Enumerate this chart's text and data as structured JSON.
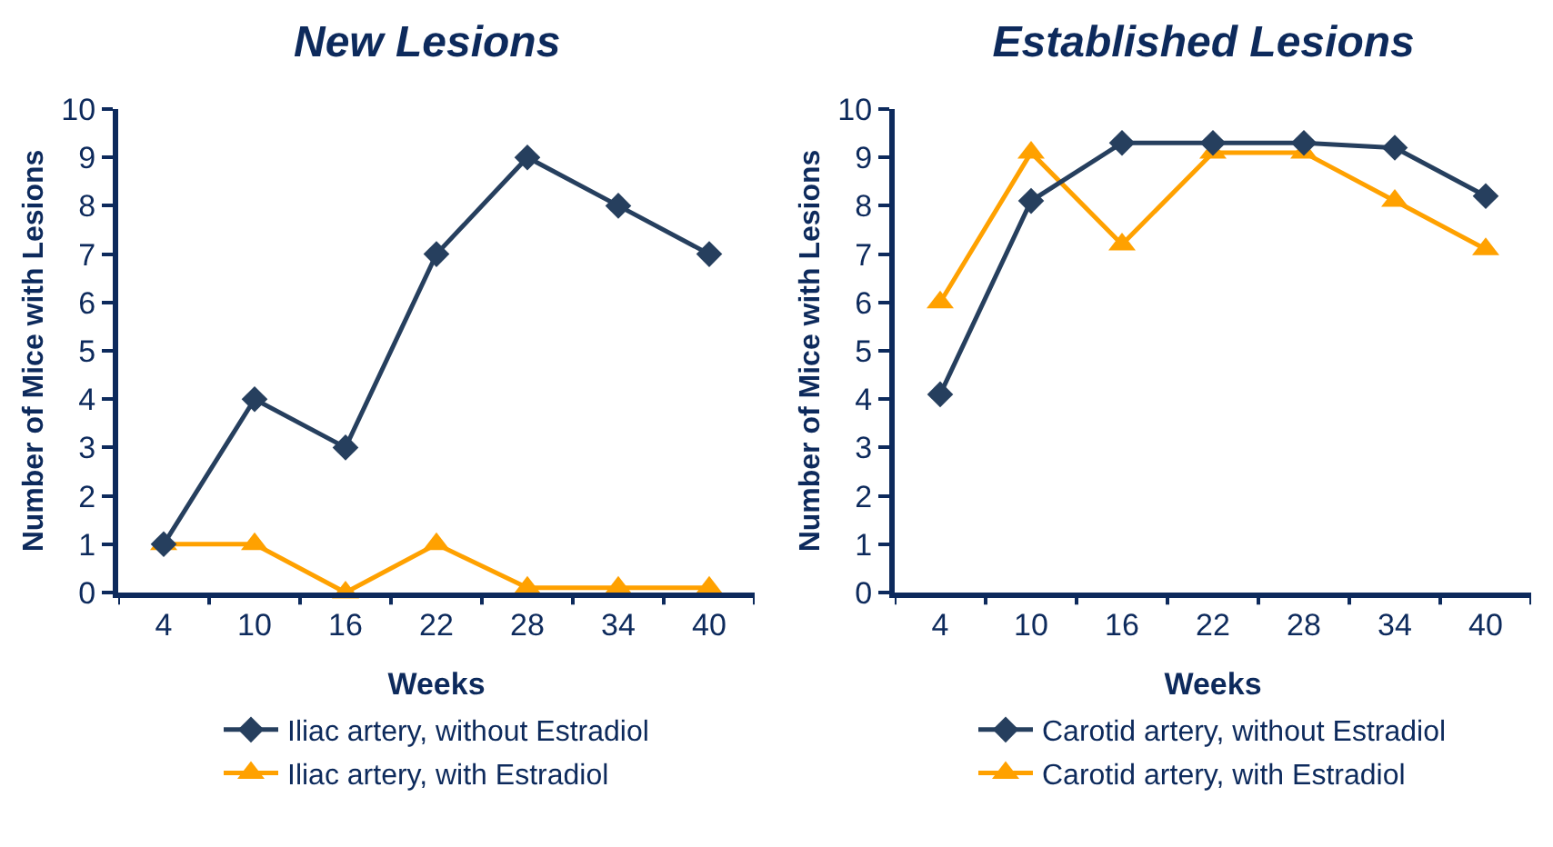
{
  "chart_data": [
    {
      "type": "line",
      "title": "New Lesions",
      "xlabel": "Weeks",
      "ylabel": "Number of Mice with Lesions",
      "categories": [
        "4",
        "10",
        "16",
        "22",
        "28",
        "34",
        "40"
      ],
      "ylim": [
        0,
        10
      ],
      "yticks": [
        0,
        1,
        2,
        3,
        4,
        5,
        6,
        7,
        8,
        9,
        10
      ],
      "legend": "bottom",
      "grid": false,
      "series": [
        {
          "name": "Iliac artery, without Estradiol",
          "color": "#263f5e",
          "marker": "diamond",
          "values": [
            1,
            4,
            3,
            7,
            9,
            8,
            7
          ]
        },
        {
          "name": "Iliac artery, with Estradiol",
          "color": "#ffa100",
          "marker": "triangle",
          "values": [
            1,
            1,
            0,
            1,
            0.1,
            0.1,
            0.1
          ]
        }
      ]
    },
    {
      "type": "line",
      "title": "Established Lesions",
      "xlabel": "Weeks",
      "ylabel": "Number of Mice with Lesions",
      "categories": [
        "4",
        "10",
        "16",
        "22",
        "28",
        "34",
        "40"
      ],
      "ylim": [
        0,
        10
      ],
      "yticks": [
        0,
        1,
        2,
        3,
        4,
        5,
        6,
        7,
        8,
        9,
        10
      ],
      "legend": "bottom",
      "grid": false,
      "series": [
        {
          "name": "Carotid artery, without Estradiol",
          "color": "#263f5e",
          "marker": "diamond",
          "values": [
            4.1,
            8.1,
            9.3,
            9.3,
            9.3,
            9.2,
            8.2
          ]
        },
        {
          "name": "Carotid artery, with Estradiol",
          "color": "#ffa100",
          "marker": "triangle",
          "values": [
            6.0,
            9.1,
            7.2,
            9.1,
            9.1,
            8.1,
            7.1
          ]
        }
      ]
    }
  ]
}
